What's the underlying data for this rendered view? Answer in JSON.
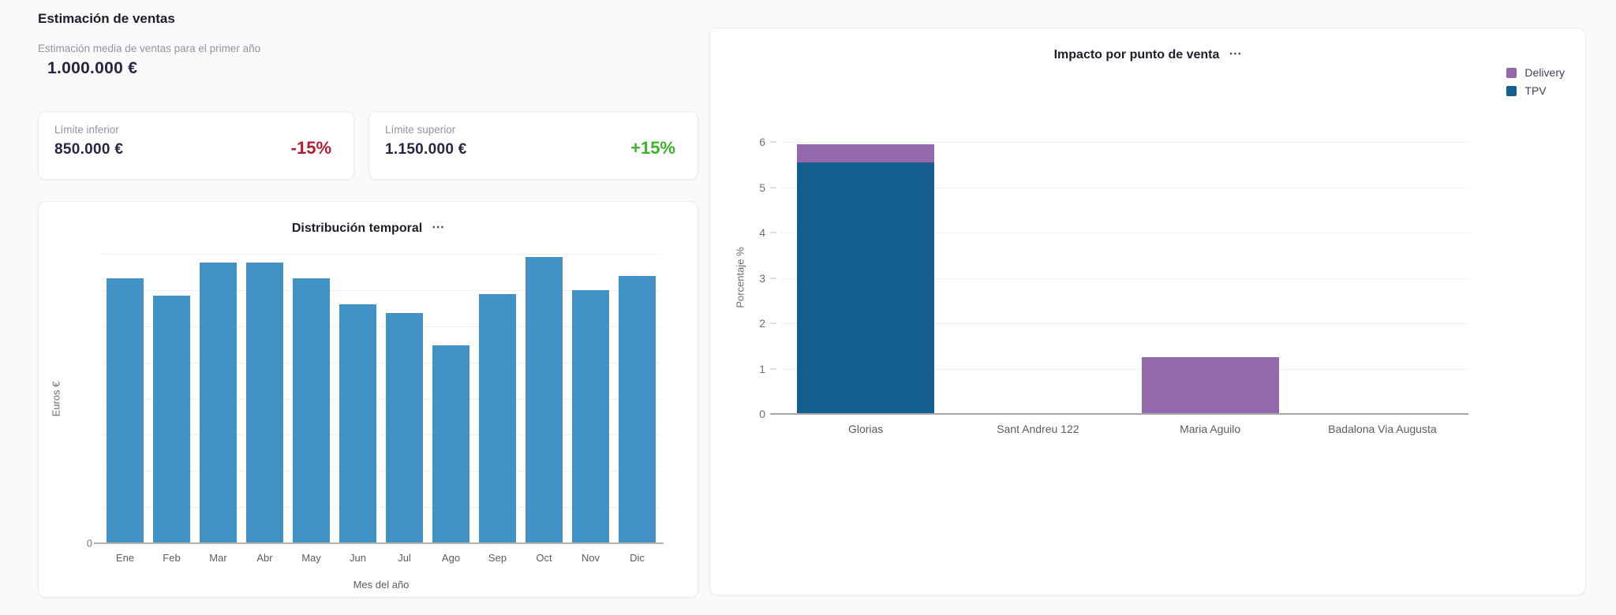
{
  "header": {
    "title": "Estimación de ventas",
    "subtitle": "Estimación media de ventas para el primer año",
    "average_value": "1.000.000 €"
  },
  "limits": {
    "lower": {
      "label": "Límite inferior",
      "value": "850.000 €",
      "delta": "-15%"
    },
    "upper": {
      "label": "Límite superior",
      "value": "1.150.000 €",
      "delta": "+15%"
    }
  },
  "icons": {
    "chart_menu": "⋯"
  },
  "colors": {
    "background": "#fafafa",
    "card": "#ffffff",
    "monthly_bar_blue": "#4292c6",
    "tpv_blue": "#145f8d",
    "delivery_purple": "#9468ad",
    "negative_red": "#b11e35",
    "positive_green": "#3db32b",
    "dark_navy_text": "#272643",
    "muted_label_gray": "#9193a3"
  },
  "chart_data": [
    {
      "type": "bar",
      "title": "Distribución temporal",
      "xlabel": "Mes del año",
      "ylabel": "Euros €",
      "categories": [
        "Ene",
        "Feb",
        "Mar",
        "Abr",
        "May",
        "Jun",
        "Jul",
        "Ago",
        "Sep",
        "Oct",
        "Nov",
        "Dic"
      ],
      "values": [
        91.5,
        85.5,
        97,
        97,
        91.5,
        82.5,
        79.5,
        68.5,
        86,
        99,
        87.5,
        92.5
      ],
      "ylim": [
        0,
        100
      ],
      "y_axis_visible_tick_labels": [
        "0"
      ],
      "note": "y-axis shows no numeric labels except 0; values estimated as percent of plot height",
      "grid": true,
      "gridline_count": 8,
      "bar_color": "#4292c6",
      "legend_position": "none"
    },
    {
      "type": "stacked-bar",
      "title": "Impacto por punto de venta",
      "xlabel": "",
      "ylabel": "Porcentaje %",
      "categories": [
        "Glorias",
        "Sant Andreu 122",
        "Maria Aguilo",
        "Badalona Via Augusta"
      ],
      "series": [
        {
          "name": "Delivery",
          "color": "#9468ad",
          "values": [
            0.4,
            0,
            1.25,
            0
          ]
        },
        {
          "name": "TPV",
          "color": "#145f8d",
          "values": [
            5.55,
            0,
            0,
            0
          ]
        }
      ],
      "ylim": [
        0,
        6
      ],
      "yticks": [
        0,
        1,
        2,
        3,
        4,
        5,
        6
      ],
      "grid": true,
      "legend_position": "top-right"
    }
  ]
}
